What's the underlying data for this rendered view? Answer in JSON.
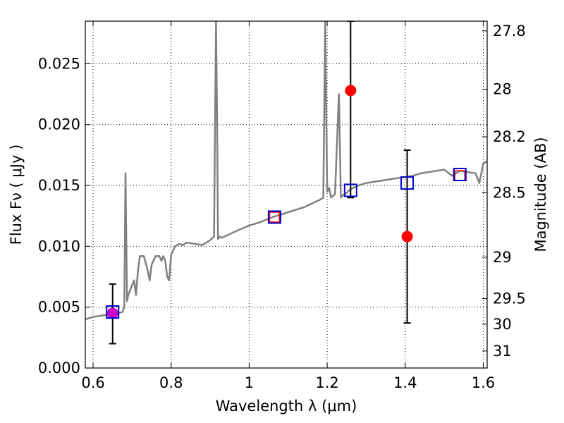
{
  "chart_data": {
    "type": "scatter",
    "xlabel": "Wavelength  λ (μm)",
    "ylabel": "Flux  Fν  ( μJy )",
    "ylabel_right": "Magnitude (AB)",
    "xlim": [
      0.58,
      1.61
    ],
    "ylim": [
      0.0,
      0.0285
    ],
    "grid": true,
    "x_ticks": [
      {
        "v": 0.6,
        "label": "0.6"
      },
      {
        "v": 0.8,
        "label": "0.8"
      },
      {
        "v": 1.0,
        "label": "1"
      },
      {
        "v": 1.2,
        "label": "1.2"
      },
      {
        "v": 1.4,
        "label": "1.4"
      },
      {
        "v": 1.6,
        "label": "1.6"
      }
    ],
    "y_ticks": [
      {
        "v": 0.0,
        "label": "0.000"
      },
      {
        "v": 0.005,
        "label": "0.005"
      },
      {
        "v": 0.01,
        "label": "0.010"
      },
      {
        "v": 0.015,
        "label": "0.015"
      },
      {
        "v": 0.02,
        "label": "0.020"
      },
      {
        "v": 0.025,
        "label": "0.025"
      }
    ],
    "right_ticks": [
      {
        "label": "27.8",
        "flux": 0.0277
      },
      {
        "label": "28",
        "flux": 0.0229
      },
      {
        "label": "28.2",
        "flux": 0.019
      },
      {
        "label": "28.5",
        "flux": 0.0144
      },
      {
        "label": "29",
        "flux": 0.0091
      },
      {
        "label": "29.5",
        "flux": 0.0057
      },
      {
        "label": "30",
        "flux": 0.0036
      },
      {
        "label": "31",
        "flux": 0.0014
      }
    ],
    "spectrum": {
      "color": "#808080",
      "x": [
        0.58,
        0.6,
        0.62,
        0.64,
        0.66,
        0.675,
        0.68,
        0.683,
        0.687,
        0.69,
        0.7,
        0.705,
        0.71,
        0.715,
        0.72,
        0.73,
        0.74,
        0.745,
        0.75,
        0.76,
        0.77,
        0.775,
        0.78,
        0.785,
        0.79,
        0.795,
        0.8,
        0.81,
        0.82,
        0.83,
        0.84,
        0.86,
        0.88,
        0.9,
        0.91,
        0.915,
        0.918,
        0.92,
        0.925,
        0.93,
        0.95,
        0.97,
        1.0,
        1.03,
        1.06,
        1.08,
        1.1,
        1.12,
        1.14,
        1.16,
        1.18,
        1.19,
        1.195,
        1.2,
        1.205,
        1.21,
        1.22,
        1.23,
        1.235,
        1.24,
        1.25,
        1.26,
        1.28,
        1.3,
        1.32,
        1.34,
        1.36,
        1.38,
        1.4,
        1.42,
        1.44,
        1.46,
        1.48,
        1.5,
        1.52,
        1.54,
        1.56,
        1.58,
        1.59,
        1.6,
        1.61
      ],
      "y": [
        0.004,
        0.0042,
        0.0043,
        0.0044,
        0.0045,
        0.0046,
        0.005,
        0.016,
        0.0055,
        0.006,
        0.0068,
        0.0072,
        0.006,
        0.008,
        0.0092,
        0.0092,
        0.008,
        0.0072,
        0.0085,
        0.0092,
        0.0092,
        0.0088,
        0.0092,
        0.0088,
        0.0075,
        0.0072,
        0.0093,
        0.01,
        0.0102,
        0.0101,
        0.0103,
        0.0102,
        0.0101,
        0.0105,
        0.0108,
        0.0285,
        0.02,
        0.0106,
        0.0108,
        0.0107,
        0.011,
        0.0113,
        0.0117,
        0.012,
        0.0124,
        0.0126,
        0.0128,
        0.013,
        0.0132,
        0.0135,
        0.0138,
        0.014,
        0.0285,
        0.0145,
        0.0148,
        0.014,
        0.0143,
        0.0225,
        0.014,
        0.0142,
        0.0144,
        0.0147,
        0.015,
        0.0152,
        0.0153,
        0.0154,
        0.0155,
        0.0156,
        0.0157,
        0.0158,
        0.016,
        0.0161,
        0.0162,
        0.0163,
        0.0158,
        0.0162,
        0.0161,
        0.016,
        0.0152,
        0.0168,
        0.017
      ]
    },
    "observed": {
      "color": "#ff0000",
      "points": [
        {
          "x": 0.65,
          "y": 0.0045,
          "yerr": [
            0.002,
            0.0069
          ]
        },
        {
          "x": 1.26,
          "y": 0.0228,
          "yerr": [
            0.014,
            0.0285
          ]
        },
        {
          "x": 1.405,
          "y": 0.0108,
          "yerr": [
            0.0037,
            0.0179
          ]
        }
      ]
    },
    "model_box": {
      "color": "#0000cc",
      "points": [
        {
          "x": 0.65,
          "y": 0.0046
        },
        {
          "x": 1.065,
          "y": 0.0124
        },
        {
          "x": 1.26,
          "y": 0.0146
        },
        {
          "x": 1.405,
          "y": 0.0152
        },
        {
          "x": 1.54,
          "y": 0.0159
        }
      ]
    },
    "model_small": {
      "color": "#ff0000",
      "points": [
        {
          "x": 1.065,
          "y": 0.0124
        },
        {
          "x": 1.54,
          "y": 0.0158
        }
      ]
    },
    "magenta_point": {
      "color": "#cc00cc",
      "x": 0.65,
      "y": 0.0045
    }
  }
}
